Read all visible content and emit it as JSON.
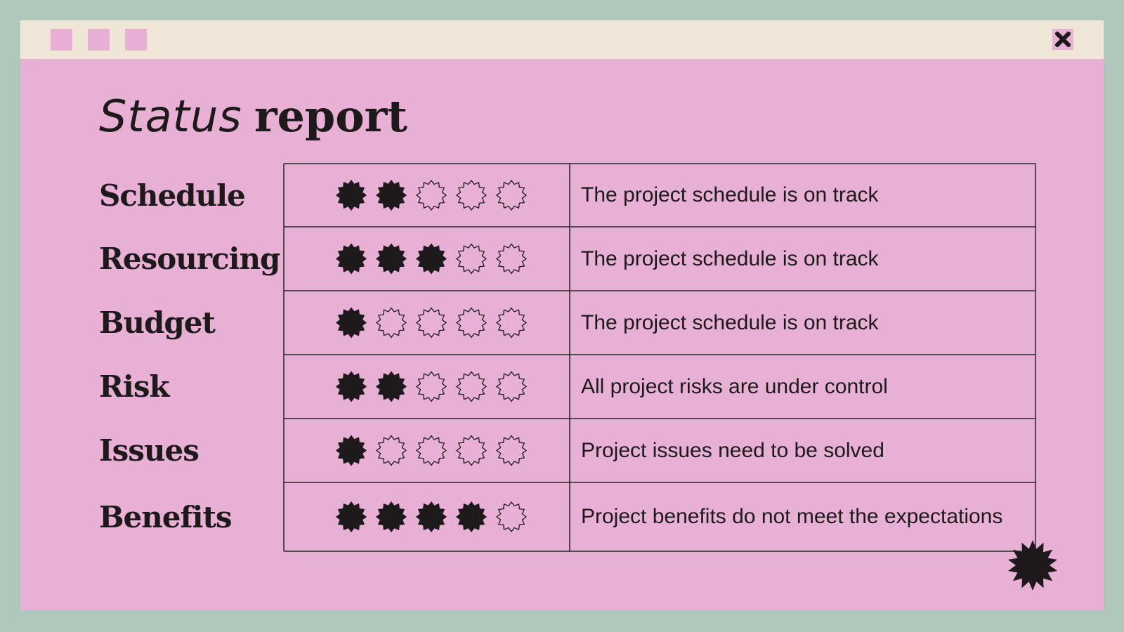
{
  "slide": {
    "title_light": "Status",
    "title_bold": "report",
    "rating_max": 5,
    "rows": [
      {
        "label": "Schedule",
        "rating": 2,
        "description": "The project schedule is on track"
      },
      {
        "label": "Resourcing",
        "rating": 3,
        "description": "The project schedule is on track"
      },
      {
        "label": "Budget",
        "rating": 1,
        "description": "The project schedule is on track"
      },
      {
        "label": "Risk",
        "rating": 2,
        "description": "All project risks are under control"
      },
      {
        "label": "Issues",
        "rating": 1,
        "description": "Project issues need to be solved"
      },
      {
        "label": "Benefits",
        "rating": 4,
        "description": "Project benefits do not meet the expectations"
      }
    ]
  }
}
